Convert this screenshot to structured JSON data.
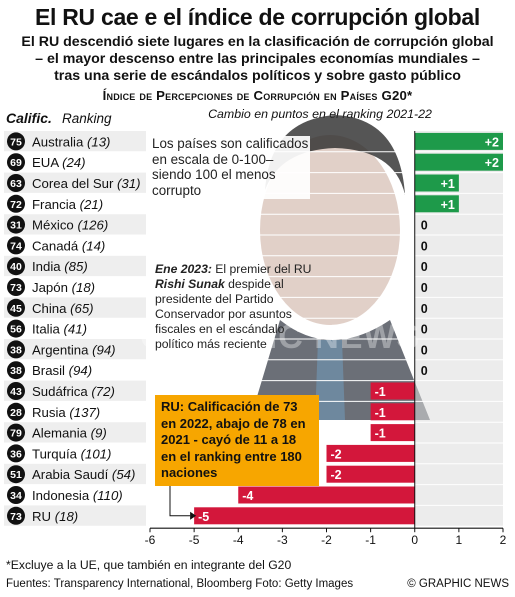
{
  "header": {
    "title": "El RU cae e el índice de corrupción global",
    "subtitle_lines": [
      "El RU descendió siete lugares en la clasificación de corrupción global",
      "– el mayor descenso entre las principales economías mundiales –",
      "tras una serie de escándalos políticos y sobre gasto público"
    ],
    "section_title": "Índice de Percepciones de Corrupción en Países G20*",
    "col_calif": "Calific.",
    "col_rank": "Ranking",
    "col_change": "Cambio en puntos en el ranking  2021-22"
  },
  "caption": "Los países son calificados en escala de 0-100– siendo 100 el menos corrupto",
  "note": {
    "date": "Ene 2023:",
    "text1": " El premier del RU ",
    "name": "Rishi Sunak",
    "text2": " despide al presidente del Partido Conservador por asuntos fiscales en el escándalo político más reciente"
  },
  "callout": "RU: Calificación de 73 en 2022, abajo de 78 en 2021 - cayó de 11 a 18 en el ranking entre 180 naciones",
  "watermark": "GRAPHIC NEWS",
  "footer": {
    "footnote": "*Excluye a la UE, que también en integrante del G20",
    "sources": "Fuentes: Transparency International, Bloomberg      Foto: Getty Images",
    "credit": "© GRAPHIC NEWS"
  },
  "colors": {
    "positive": "#1e9a4a",
    "negative": "#d3173b",
    "score_circle": "#111111",
    "zero_band": "#dcdcdc",
    "callout": "#f7a600"
  },
  "chart_data": {
    "type": "bar",
    "orientation": "horizontal",
    "xlim": [
      -6,
      2
    ],
    "xticks": [
      -6,
      -5,
      -4,
      -3,
      -2,
      -1,
      0,
      1,
      2
    ],
    "rows": [
      {
        "score": 75,
        "country": "Australia",
        "rank": "(13)",
        "change": 2,
        "label": "+2"
      },
      {
        "score": 69,
        "country": "EUA",
        "rank": "(24)",
        "change": 2,
        "label": "+2"
      },
      {
        "score": 63,
        "country": "Corea del Sur",
        "rank": "(31)",
        "change": 1,
        "label": "+1"
      },
      {
        "score": 72,
        "country": "Francia",
        "rank": "(21)",
        "change": 1,
        "label": "+1"
      },
      {
        "score": 31,
        "country": "México",
        "rank": "(126)",
        "change": 0,
        "label": "0"
      },
      {
        "score": 74,
        "country": "Canadá",
        "rank": "(14)",
        "change": 0,
        "label": "0"
      },
      {
        "score": 40,
        "country": "India",
        "rank": "(85)",
        "change": 0,
        "label": "0"
      },
      {
        "score": 73,
        "country": "Japón",
        "rank": "(18)",
        "change": 0,
        "label": "0"
      },
      {
        "score": 45,
        "country": "China",
        "rank": "(65)",
        "change": 0,
        "label": "0"
      },
      {
        "score": 56,
        "country": "Italia",
        "rank": "(41)",
        "change": 0,
        "label": "0"
      },
      {
        "score": 38,
        "country": "Argentina",
        "rank": "(94)",
        "change": 0,
        "label": "0"
      },
      {
        "score": 38,
        "country": "Brasil",
        "rank": "(94)",
        "change": 0,
        "label": "0"
      },
      {
        "score": 43,
        "country": "Sudáfrica",
        "rank": "(72)",
        "change": -1,
        "label": "-1"
      },
      {
        "score": 28,
        "country": "Rusia",
        "rank": "(137)",
        "change": -1,
        "label": "-1"
      },
      {
        "score": 79,
        "country": "Alemania",
        "rank": "(9)",
        "change": -1,
        "label": "-1"
      },
      {
        "score": 36,
        "country": "Turquía",
        "rank": "(101)",
        "change": -2,
        "label": "-2"
      },
      {
        "score": 51,
        "country": "Arabia Saudí",
        "rank": "(54)",
        "change": -2,
        "label": "-2"
      },
      {
        "score": 34,
        "country": "Indonesia",
        "rank": "(110)",
        "change": -4,
        "label": "-4"
      },
      {
        "score": 73,
        "country": "RU",
        "rank": "(18)",
        "change": -5,
        "label": "-5"
      }
    ]
  }
}
